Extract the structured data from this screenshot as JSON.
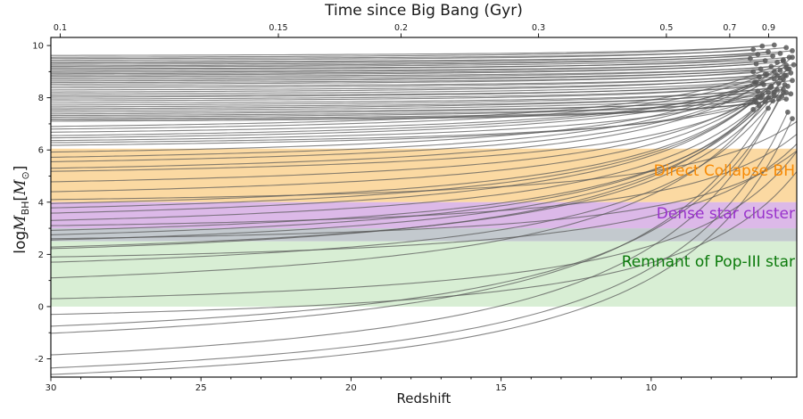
{
  "chart_data": {
    "type": "line",
    "title": "",
    "top_axis_label": "Time since Big Bang (Gyr)",
    "xlabel": "Redshift",
    "ylabel": "log M_BH [M_sun]",
    "ylabel_parts": [
      {
        "text": "log",
        "style": "normal"
      },
      {
        "text": "M",
        "style": "italic"
      },
      {
        "text": "BH",
        "style": "sub"
      },
      {
        "text": "[",
        "style": "normal"
      },
      {
        "text": "M",
        "style": "italic"
      },
      {
        "text": "⊙",
        "style": "sub"
      },
      {
        "text": "]",
        "style": "normal"
      }
    ],
    "xlim": [
      30,
      5.15
    ],
    "ylim": [
      -2.7,
      10.31
    ],
    "x_ticks": [
      30,
      25,
      20,
      15,
      10
    ],
    "y_ticks": [
      -2,
      0,
      2,
      4,
      6,
      8,
      10
    ],
    "y_minor_ticks": [
      -1,
      1,
      3,
      5,
      7,
      9
    ],
    "top_ticks_gyr": [
      "0.1",
      "0.15",
      "0.2",
      "0.3",
      "0.5",
      "0.7",
      "0.9"
    ],
    "grid": false,
    "legend": "none",
    "cosmology_note": "top axis maps time to redshift via t(z)=11.13*asinh(1.5275*(1+z)^-1.5) Gyr",
    "bands": [
      {
        "label": "Direct Collapse BH",
        "logM_range": [
          4.0,
          6.05
        ],
        "fill": "#fbd9a2",
        "label_color": "#f78a05",
        "label_logM": 5.18
      },
      {
        "label": "Dense star cluster",
        "logM_range": [
          3.0,
          4.0
        ],
        "fill": "#dcb9e8",
        "label_color": "#9932cc",
        "label_logM": 3.55
      },
      {
        "label": "",
        "logM_range": [
          2.5,
          3.0
        ],
        "fill": "#c3c9ce",
        "label_color": "",
        "label_logM": null
      },
      {
        "label": "Remnant of Pop-III star",
        "logM_range": [
          0.0,
          2.5
        ],
        "fill": "#d8eed4",
        "label_color": "#0b7a0b",
        "label_logM": 1.72
      }
    ],
    "line_color": "#575757",
    "line_opacity": 0.72,
    "dot_color": "#5a5a5a",
    "tracks_format": "[logM_at_z30, logM_at_end, z_end]",
    "tracks": [
      [
        9.62,
        10.02,
        5.9
      ],
      [
        9.55,
        9.98,
        6.3
      ],
      [
        9.5,
        9.92,
        5.5
      ],
      [
        9.44,
        9.85,
        6.6
      ],
      [
        9.38,
        9.8,
        5.3
      ],
      [
        9.33,
        9.76,
        6.1
      ],
      [
        9.28,
        9.7,
        5.7
      ],
      [
        9.22,
        9.66,
        6.45
      ],
      [
        9.18,
        9.6,
        5.95
      ],
      [
        9.12,
        9.55,
        5.4
      ],
      [
        9.08,
        9.5,
        6.7
      ],
      [
        9.02,
        9.45,
        5.6
      ],
      [
        8.97,
        9.42,
        6.2
      ],
      [
        8.92,
        9.36,
        5.8
      ],
      [
        8.87,
        9.3,
        6.5
      ],
      [
        8.82,
        9.26,
        5.25
      ],
      [
        8.76,
        9.2,
        6.0
      ],
      [
        8.7,
        9.15,
        5.5
      ],
      [
        8.64,
        9.1,
        6.35
      ],
      [
        8.58,
        9.05,
        5.7
      ],
      [
        8.52,
        9.0,
        6.6
      ],
      [
        8.45,
        8.95,
        5.35
      ],
      [
        8.38,
        8.9,
        6.15
      ],
      [
        8.3,
        8.85,
        5.55
      ],
      [
        8.22,
        8.8,
        6.4
      ],
      [
        8.15,
        8.72,
        5.9
      ],
      [
        8.08,
        8.66,
        5.3
      ],
      [
        8.02,
        8.6,
        6.55
      ],
      [
        7.95,
        8.55,
        5.75
      ],
      [
        7.88,
        8.5,
        6.25
      ],
      [
        7.8,
        8.44,
        5.45
      ],
      [
        7.72,
        8.38,
        6.05
      ],
      [
        7.65,
        8.32,
        5.6
      ],
      [
        7.58,
        8.25,
        6.45
      ],
      [
        7.52,
        8.2,
        5.9
      ],
      [
        7.45,
        8.15,
        5.35
      ],
      [
        7.38,
        8.1,
        6.3
      ],
      [
        7.32,
        8.05,
        5.65
      ],
      [
        7.26,
        8.0,
        6.1
      ],
      [
        7.2,
        7.95,
        5.5
      ],
      [
        7.15,
        7.88,
        5.95
      ],
      [
        7.1,
        7.82,
        6.5
      ],
      [
        6.9,
        9.4,
        5.6
      ],
      [
        6.8,
        8.9,
        6.2
      ],
      [
        6.68,
        9.1,
        5.4
      ],
      [
        6.55,
        8.6,
        6.5
      ],
      [
        6.46,
        8.85,
        5.8
      ],
      [
        6.36,
        8.4,
        6.0
      ],
      [
        6.28,
        8.2,
        5.5
      ],
      [
        6.18,
        8.0,
        6.35
      ],
      [
        5.92,
        9.55,
        5.3
      ],
      [
        5.72,
        9.0,
        5.9
      ],
      [
        5.55,
        8.55,
        6.3
      ],
      [
        5.3,
        9.25,
        5.5
      ],
      [
        5.18,
        8.2,
        6.1
      ],
      [
        4.78,
        8.75,
        5.7
      ],
      [
        4.4,
        8.05,
        6.45
      ],
      [
        3.95,
        9.1,
        5.45
      ],
      [
        3.78,
        8.45,
        6.0
      ],
      [
        3.58,
        7.9,
        6.55
      ],
      [
        3.3,
        8.7,
        5.6
      ],
      [
        2.92,
        8.3,
        5.8
      ],
      [
        2.75,
        7.7,
        6.4
      ],
      [
        2.55,
        8.85,
        5.5
      ],
      [
        2.28,
        8.1,
        5.9
      ],
      [
        2.22,
        7.55,
        6.6
      ],
      [
        1.7,
        8.5,
        5.55
      ],
      [
        1.1,
        7.85,
        6.2
      ],
      [
        -0.75,
        8.2,
        5.6
      ],
      [
        -1.02,
        7.6,
        6.1
      ],
      [
        -1.85,
        7.95,
        5.75
      ],
      [
        -2.35,
        7.45,
        5.45
      ],
      [
        -2.6,
        7.2,
        5.3
      ],
      [
        0.3,
        6.5,
        4.8
      ],
      [
        1.9,
        6.8,
        4.7
      ],
      [
        2.6,
        6.2,
        4.9
      ],
      [
        -0.3,
        5.8,
        4.75
      ],
      [
        3.1,
        6.9,
        4.85
      ],
      [
        4.1,
        7.3,
        4.9
      ]
    ]
  }
}
